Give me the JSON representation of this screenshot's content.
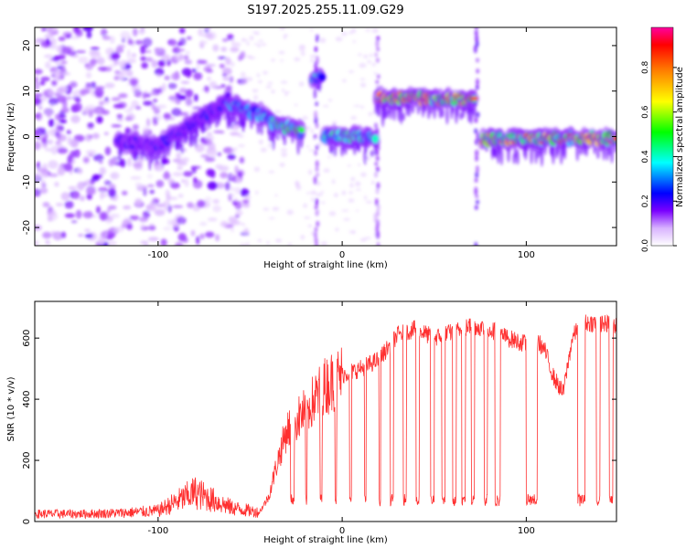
{
  "title": "S197.2025.255.11.09.G29",
  "chart_data": [
    {
      "type": "heatmap",
      "xlabel": "Height of straight line (km)",
      "ylabel": "Frequency (Hz)",
      "xlim": [
        -167,
        149
      ],
      "ylim": [
        -24,
        24
      ],
      "xticks": [
        -100,
        0,
        100
      ],
      "yticks": [
        -20,
        -10,
        0,
        10,
        20
      ],
      "colorbar": {
        "label": "Normalized spectral amplitude",
        "range": [
          0,
          0.98
        ],
        "ticks": [
          0.0,
          0.2,
          0.4,
          0.6,
          0.8
        ],
        "tick_labels": [
          "0.0",
          "0.2",
          "0.4",
          "0.6",
          "0.8"
        ],
        "colors": [
          "#ffffff",
          "#d9b3ff",
          "#7a00ff",
          "#0000ff",
          "#00ffff",
          "#00ff00",
          "#ffff00",
          "#ff8000",
          "#ff0000",
          "#ff00a0"
        ]
      },
      "ridge": [
        {
          "x_start": -122,
          "x_end": -100,
          "freq_start": -1,
          "freq_end": -2,
          "amplitude": 0.2
        },
        {
          "x_start": -100,
          "x_end": -62,
          "freq_start": -2,
          "freq_end": 8,
          "amplitude": 0.22
        },
        {
          "x_start": -62,
          "x_end": -38,
          "freq_start": 7,
          "freq_end": 4,
          "amplitude": 0.35
        },
        {
          "x_start": -38,
          "x_end": -22,
          "freq_start": 3,
          "freq_end": 1,
          "amplitude": 0.45
        },
        {
          "x_start": -16,
          "x_end": -11,
          "freq_start": 13,
          "freq_end": 13,
          "amplitude": 0.35
        },
        {
          "x_start": -10,
          "x_end": 18,
          "freq_start": 0,
          "freq_end": 0,
          "amplitude": 0.4
        },
        {
          "x_start": 19,
          "x_end": 72,
          "freq_start": 8.5,
          "freq_end": 8,
          "amplitude": 0.65
        },
        {
          "x_start": 76,
          "x_end": 149,
          "freq_start": -0.5,
          "freq_end": -0.5,
          "amplitude": 0.6
        }
      ]
    },
    {
      "type": "line",
      "xlabel": "Height of straight line (km)",
      "ylabel": "SNR (10 * v/v)",
      "xlim": [
        -167,
        149
      ],
      "ylim": [
        0,
        720
      ],
      "xticks": [
        -100,
        0,
        100
      ],
      "yticks": [
        0,
        200,
        400,
        600
      ],
      "color": "#ff3030",
      "series": [
        {
          "name": "SNR",
          "x": [
            -167,
            -140,
            -120,
            -100,
            -85,
            -80,
            -70,
            -60,
            -50,
            -45,
            -40,
            -35,
            -30,
            -20,
            -10,
            0,
            10,
            20,
            30,
            40,
            50,
            60,
            70,
            80,
            90,
            100,
            105,
            110,
            115,
            120,
            125,
            130,
            140,
            149
          ],
          "y": [
            25,
            25,
            28,
            35,
            80,
            95,
            70,
            45,
            35,
            30,
            80,
            200,
            300,
            360,
            440,
            480,
            500,
            530,
            610,
            630,
            600,
            620,
            640,
            630,
            600,
            580,
            600,
            560,
            470,
            420,
            600,
            650,
            650,
            640
          ]
        }
      ],
      "dropouts": [
        [
          -28,
          -26
        ],
        [
          -20,
          -19
        ],
        [
          -12,
          -11
        ],
        [
          -4,
          -3
        ],
        [
          4,
          5
        ],
        [
          12,
          13
        ],
        [
          20,
          21
        ],
        [
          26,
          28
        ],
        [
          33,
          35
        ],
        [
          40,
          42
        ],
        [
          48,
          50
        ],
        [
          54,
          56
        ],
        [
          60,
          62
        ],
        [
          65,
          67
        ],
        [
          70,
          72
        ],
        [
          77,
          79
        ],
        [
          83,
          86
        ],
        [
          100,
          106
        ],
        [
          128,
          132
        ],
        [
          138,
          140
        ],
        [
          145,
          147
        ]
      ]
    }
  ]
}
